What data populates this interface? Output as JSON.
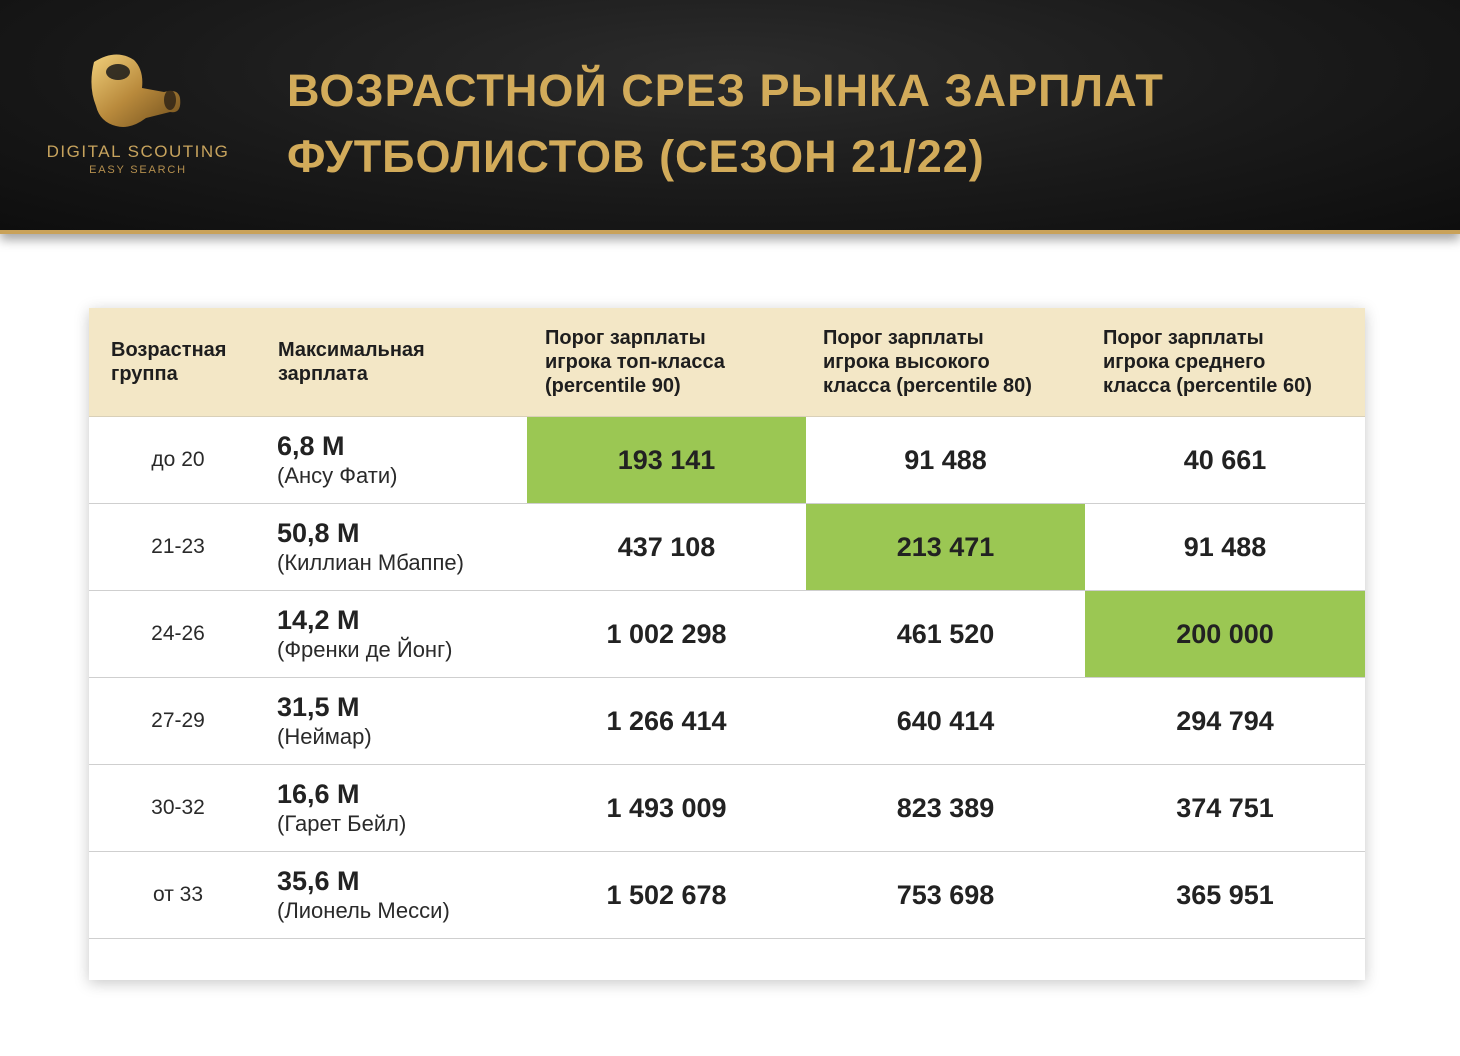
{
  "header": {
    "brand": "DIGITAL SCOUTING",
    "brand_sub": "EASY SEARCH",
    "title_line1": "Возрастной срез рынка зарплат",
    "title_line2": "футболистов (сезон 21/22)",
    "accent_color": "#d2ab5a"
  },
  "table": {
    "highlight_color": "#9bc753",
    "header_bg": "#f3e7c6",
    "columns": [
      "Возрастная\nгруппа",
      "Максимальная\nзарплата",
      "Порог зарплаты\nигрока топ-класса\n(percentile 90)",
      "Порог зарплаты\nигрока высокого\nкласса (percentile 80)",
      "Порог зарплаты\nигрока среднего\nкласса (percentile 60)"
    ],
    "rows": [
      {
        "age": "до 20",
        "max": "6,8 М",
        "player": "(Ансу Фати)",
        "p90": "193 141",
        "p80": "91 488",
        "p60": "40 661",
        "highlight": "p90"
      },
      {
        "age": "21-23",
        "max": "50,8 М",
        "player": "(Киллиан Мбаппе)",
        "p90": "437 108",
        "p80": "213 471",
        "p60": "91 488",
        "highlight": "p80"
      },
      {
        "age": "24-26",
        "max": "14,2 М",
        "player": "(Френки де Йонг)",
        "p90": "1 002 298",
        "p80": "461 520",
        "p60": "200 000",
        "highlight": "p60"
      },
      {
        "age": "27-29",
        "max": "31,5 М",
        "player": "(Неймар)",
        "p90": "1 266 414",
        "p80": "640 414",
        "p60": "294 794",
        "highlight": ""
      },
      {
        "age": "30-32",
        "max": "16,6 М",
        "player": "(Гарет Бейл)",
        "p90": "1 493 009",
        "p80": "823 389",
        "p60": "374 751",
        "highlight": ""
      },
      {
        "age": "от 33",
        "max": "35,6 М",
        "player": "(Лионель Месси)",
        "p90": "1 502 678",
        "p80": "753 698",
        "p60": "365 951",
        "highlight": ""
      }
    ]
  }
}
